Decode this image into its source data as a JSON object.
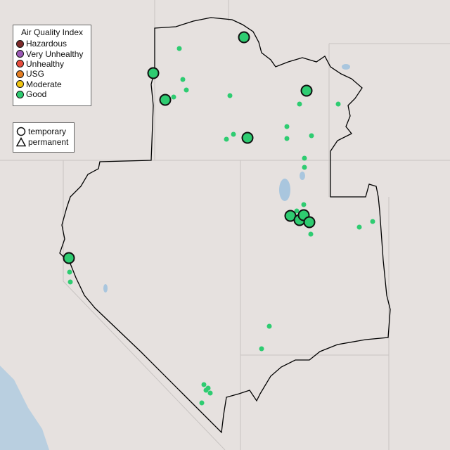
{
  "legend_aqi": {
    "title": "Air Quality Index",
    "items": [
      {
        "label": "Hazardous",
        "color": "#7e2a2a"
      },
      {
        "label": "Very Unhealthy",
        "color": "#9b59b6"
      },
      {
        "label": "Unhealthy",
        "color": "#e74c3c"
      },
      {
        "label": "USG",
        "color": "#e67e22"
      },
      {
        "label": "Moderate",
        "color": "#f1c40f"
      },
      {
        "label": "Good",
        "color": "#2ecc71"
      }
    ]
  },
  "legend_type": {
    "items": [
      {
        "label": "temporary",
        "shape": "circle"
      },
      {
        "label": "permanent",
        "shape": "triangle"
      }
    ]
  },
  "monitors_temporary_aqi": [
    "Good",
    "Good",
    "Good",
    "Good",
    "Good",
    "Good",
    "Good",
    "Good",
    "Good",
    "Good"
  ],
  "colors": {
    "good": "#2ecc71",
    "boundary": "#000000",
    "water": "#a9c6de"
  }
}
